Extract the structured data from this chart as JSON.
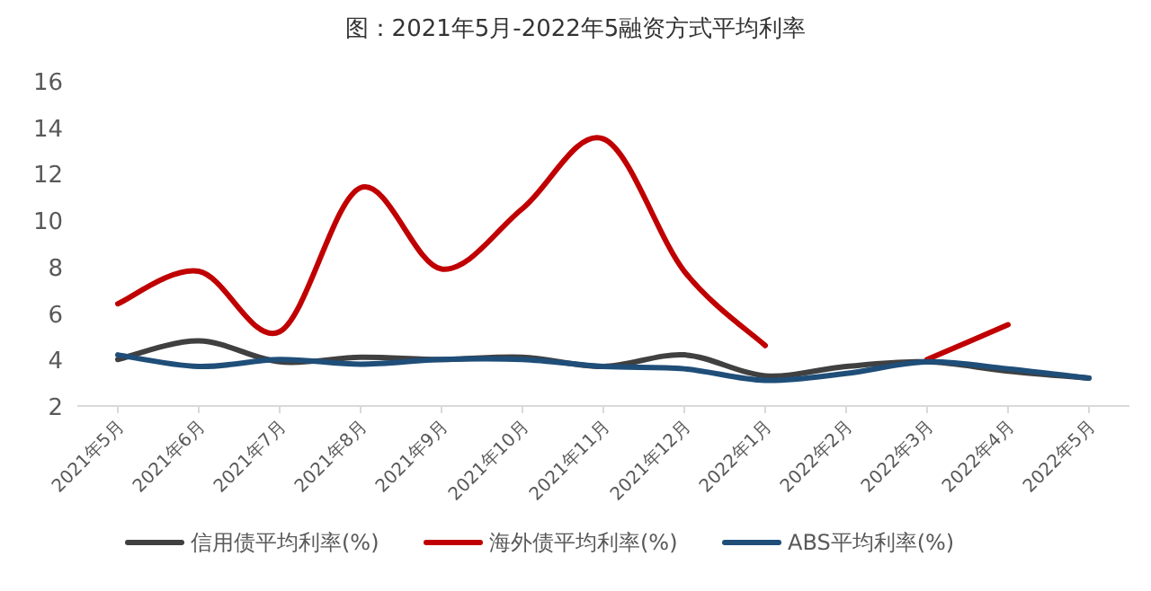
{
  "chart_data": {
    "type": "line",
    "title": "图：2021年5月-2022年5融资方式平均利率",
    "categories": [
      "2021年5月",
      "2021年6月",
      "2021年7月",
      "2021年8月",
      "2021年9月",
      "2021年10月",
      "2021年11月",
      "2021年12月",
      "2022年1月",
      "2022年2月",
      "2022年3月",
      "2022年4月",
      "2022年5月"
    ],
    "ylim": [
      2,
      16
    ],
    "yticks": [
      2,
      4,
      6,
      8,
      10,
      12,
      14,
      16
    ],
    "grid": false,
    "legend": "bottom",
    "marker": "none",
    "line_style": "solid",
    "series": [
      {
        "name": "信用债平均利率(%)",
        "color": "#404040",
        "values": [
          4.0,
          4.8,
          3.9,
          4.1,
          4.0,
          4.1,
          3.7,
          4.2,
          3.3,
          3.7,
          3.9,
          3.5,
          3.2
        ]
      },
      {
        "name": "海外债平均利率(%)",
        "color": "#c00000",
        "values": [
          6.4,
          7.8,
          5.2,
          11.4,
          7.9,
          10.5,
          13.5,
          7.8,
          4.6,
          null,
          4.0,
          5.5,
          null
        ]
      },
      {
        "name": "ABS平均利率(%)",
        "color": "#1f4e79",
        "values": [
          4.2,
          3.7,
          4.0,
          3.8,
          4.0,
          4.0,
          3.7,
          3.6,
          3.1,
          3.4,
          3.9,
          3.6,
          3.2
        ]
      }
    ]
  }
}
